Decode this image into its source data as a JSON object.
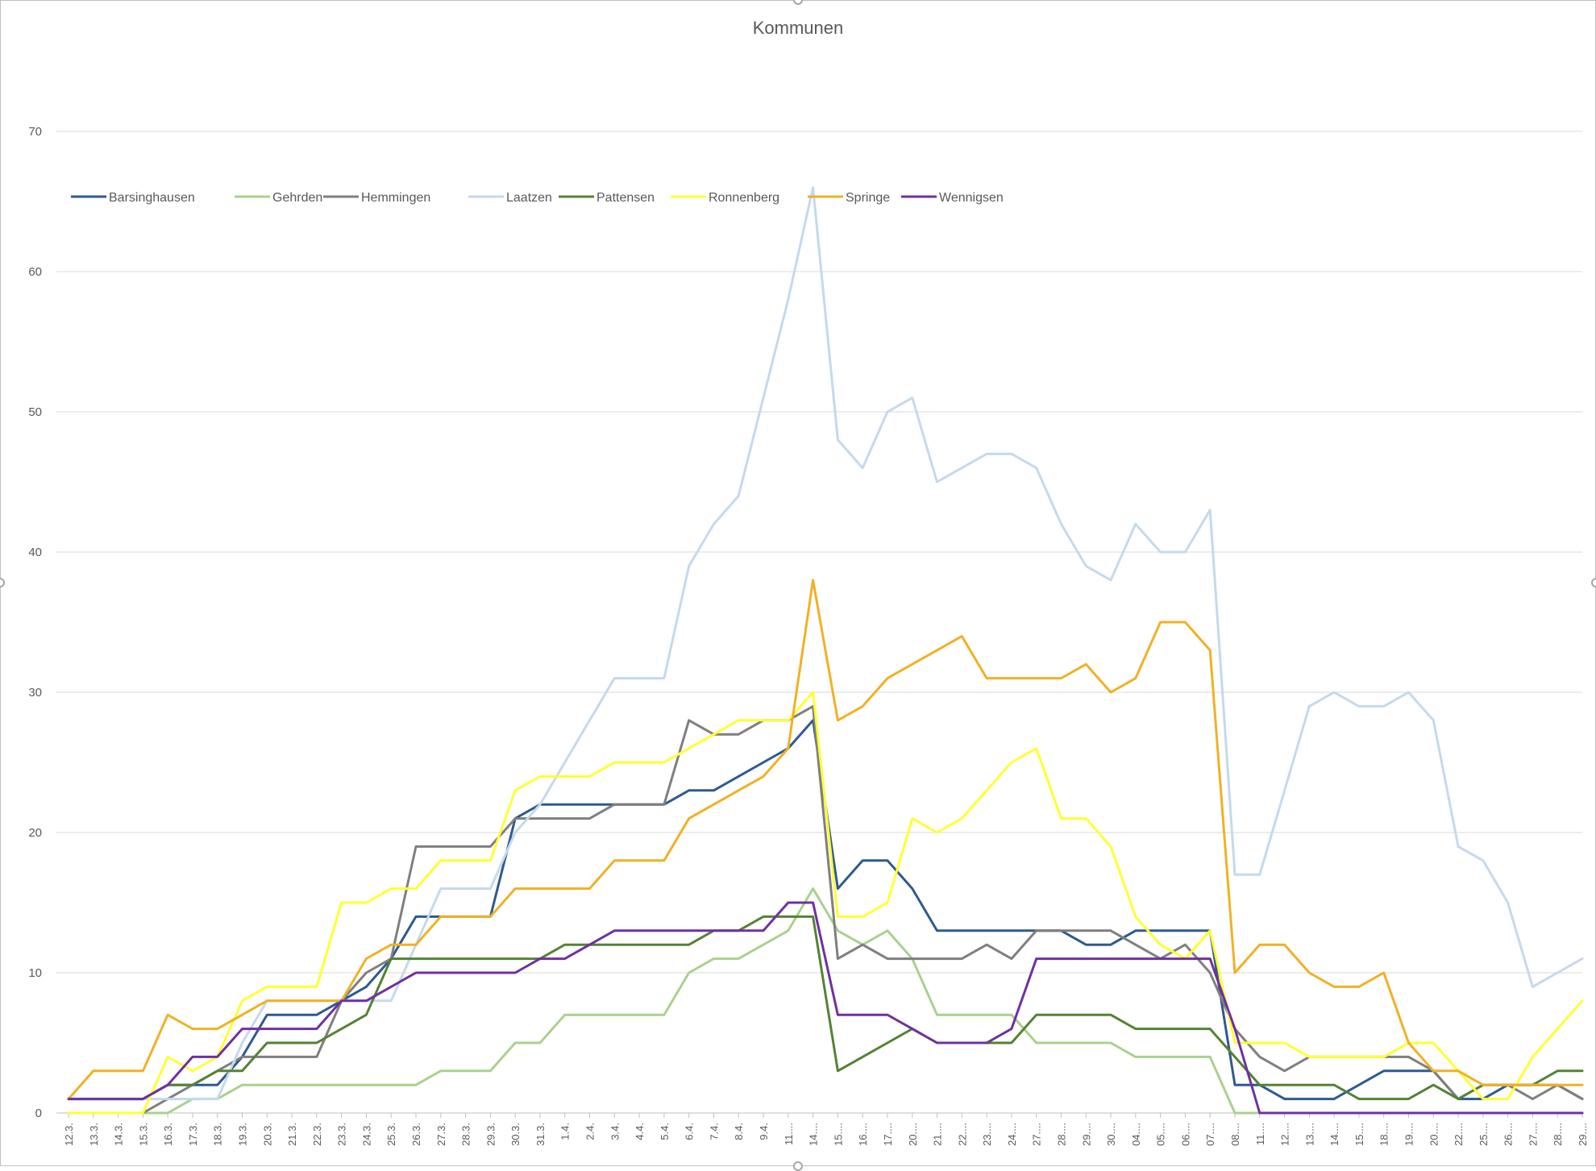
{
  "chart_data": {
    "type": "line",
    "title": "Kommunen",
    "ylim": [
      0,
      70
    ],
    "yticks": [
      0,
      10,
      20,
      30,
      40,
      50,
      60,
      70
    ],
    "grid": true,
    "legend_position": "top-left",
    "categories": [
      "12.3.",
      "13.3.",
      "14.3.",
      "15.3.",
      "16.3.",
      "17.3.",
      "18.3.",
      "19.3.",
      "20.3.",
      "21.3.",
      "22.3.",
      "23.3.",
      "24.3.",
      "25.3.",
      "26.3.",
      "27.3.",
      "28.3.",
      "29.3.",
      "30.3.",
      "31.3.",
      "1.4.",
      "2.4.",
      "3.4.",
      "4.4.",
      "5.4.",
      "6.4.",
      "7.4.",
      "8.4.",
      "9.4.",
      "11....",
      "14....",
      "15....",
      "16....",
      "17....",
      "20....",
      "21....",
      "22....",
      "23....",
      "24....",
      "27....",
      "28....",
      "29....",
      "30....",
      "04....",
      "05....",
      "06....",
      "07....",
      "08....",
      "11....",
      "12....",
      "13....",
      "14....",
      "15....",
      "18....",
      "19....",
      "20....",
      "22....",
      "25....",
      "26....",
      "27....",
      "28....",
      "29...."
    ],
    "series": [
      {
        "name": "Barsinghausen",
        "color": "#2e5a8f",
        "values": [
          1,
          1,
          1,
          1,
          2,
          2,
          2,
          4,
          7,
          7,
          7,
          8,
          9,
          11,
          14,
          14,
          14,
          14,
          21,
          22,
          22,
          22,
          22,
          22,
          22,
          23,
          23,
          24,
          25,
          26,
          28,
          16,
          18,
          18,
          16,
          13,
          13,
          13,
          13,
          13,
          13,
          12,
          12,
          13,
          13,
          13,
          13,
          2,
          2,
          1,
          1,
          1,
          2,
          3,
          3,
          3,
          1,
          1,
          2,
          2,
          2,
          1
        ]
      },
      {
        "name": "Gehrden",
        "color": "#a9d18e",
        "values": [
          0,
          0,
          0,
          0,
          0,
          1,
          1,
          2,
          2,
          2,
          2,
          2,
          2,
          2,
          2,
          3,
          3,
          3,
          5,
          5,
          7,
          7,
          7,
          7,
          7,
          10,
          11,
          11,
          12,
          13,
          16,
          13,
          12,
          13,
          11,
          7,
          7,
          7,
          7,
          5,
          5,
          5,
          5,
          4,
          4,
          4,
          4,
          0,
          0,
          0,
          0,
          0,
          0,
          0,
          0,
          0,
          0,
          0,
          0,
          0,
          0,
          0
        ]
      },
      {
        "name": "Hemmingen",
        "color": "#7f7f7f",
        "values": [
          0,
          0,
          0,
          0,
          1,
          2,
          3,
          4,
          4,
          4,
          4,
          8,
          10,
          11,
          19,
          19,
          19,
          19,
          21,
          21,
          21,
          21,
          22,
          22,
          22,
          28,
          27,
          27,
          28,
          28,
          29,
          11,
          12,
          11,
          11,
          11,
          11,
          12,
          11,
          13,
          13,
          13,
          13,
          12,
          11,
          12,
          10,
          6,
          4,
          3,
          4,
          4,
          4,
          4,
          4,
          3,
          1,
          2,
          2,
          1,
          2,
          1
        ]
      },
      {
        "name": "Laatzen",
        "color": "#c5d9ec",
        "values": [
          1,
          1,
          1,
          1,
          1,
          1,
          1,
          5,
          8,
          8,
          8,
          8,
          8,
          8,
          12,
          16,
          16,
          16,
          20,
          22,
          25,
          28,
          31,
          31,
          31,
          39,
          42,
          44,
          51,
          58,
          66,
          48,
          46,
          50,
          51,
          45,
          46,
          47,
          47,
          46,
          42,
          39,
          38,
          42,
          40,
          40,
          43,
          17,
          17,
          23,
          29,
          30,
          29,
          29,
          30,
          28,
          19,
          18,
          15,
          9,
          10,
          11
        ]
      },
      {
        "name": "Pattensen",
        "color": "#548235",
        "values": [
          1,
          1,
          1,
          1,
          2,
          2,
          3,
          3,
          5,
          5,
          5,
          6,
          7,
          11,
          11,
          11,
          11,
          11,
          11,
          11,
          12,
          12,
          12,
          12,
          12,
          12,
          13,
          13,
          14,
          14,
          14,
          3,
          4,
          5,
          6,
          5,
          5,
          5,
          5,
          7,
          7,
          7,
          7,
          6,
          6,
          6,
          6,
          4,
          2,
          2,
          2,
          2,
          1,
          1,
          1,
          2,
          1,
          2,
          2,
          2,
          3,
          3
        ]
      },
      {
        "name": "Ronnenberg",
        "color": "#ffff33",
        "values": [
          0,
          0,
          0,
          0,
          4,
          3,
          4,
          8,
          9,
          9,
          9,
          15,
          15,
          16,
          16,
          18,
          18,
          18,
          23,
          24,
          24,
          24,
          25,
          25,
          25,
          26,
          27,
          28,
          28,
          28,
          30,
          14,
          14,
          15,
          21,
          20,
          21,
          23,
          25,
          26,
          21,
          21,
          19,
          14,
          12,
          11,
          13,
          5,
          5,
          5,
          4,
          4,
          4,
          4,
          5,
          5,
          3,
          1,
          1,
          4,
          6,
          8
        ]
      },
      {
        "name": "Springe",
        "color": "#f0b124",
        "values": [
          1,
          3,
          3,
          3,
          7,
          6,
          6,
          7,
          8,
          8,
          8,
          8,
          11,
          12,
          12,
          14,
          14,
          14,
          16,
          16,
          16,
          16,
          18,
          18,
          18,
          21,
          22,
          23,
          24,
          26,
          38,
          28,
          29,
          31,
          32,
          33,
          34,
          31,
          31,
          31,
          31,
          32,
          30,
          31,
          35,
          35,
          33,
          10,
          12,
          12,
          10,
          9,
          9,
          10,
          5,
          3,
          3,
          2,
          2,
          2,
          2,
          2
        ]
      },
      {
        "name": "Wennigsen",
        "color": "#7030a0",
        "values": [
          1,
          1,
          1,
          1,
          2,
          4,
          4,
          6,
          6,
          6,
          6,
          8,
          8,
          9,
          10,
          10,
          10,
          10,
          10,
          11,
          11,
          12,
          13,
          13,
          13,
          13,
          13,
          13,
          13,
          15,
          15,
          7,
          7,
          7,
          6,
          5,
          5,
          5,
          6,
          11,
          11,
          11,
          11,
          11,
          11,
          11,
          11,
          6,
          0,
          0,
          0,
          0,
          0,
          0,
          0,
          0,
          0,
          0,
          0,
          0,
          0,
          0
        ]
      }
    ]
  }
}
